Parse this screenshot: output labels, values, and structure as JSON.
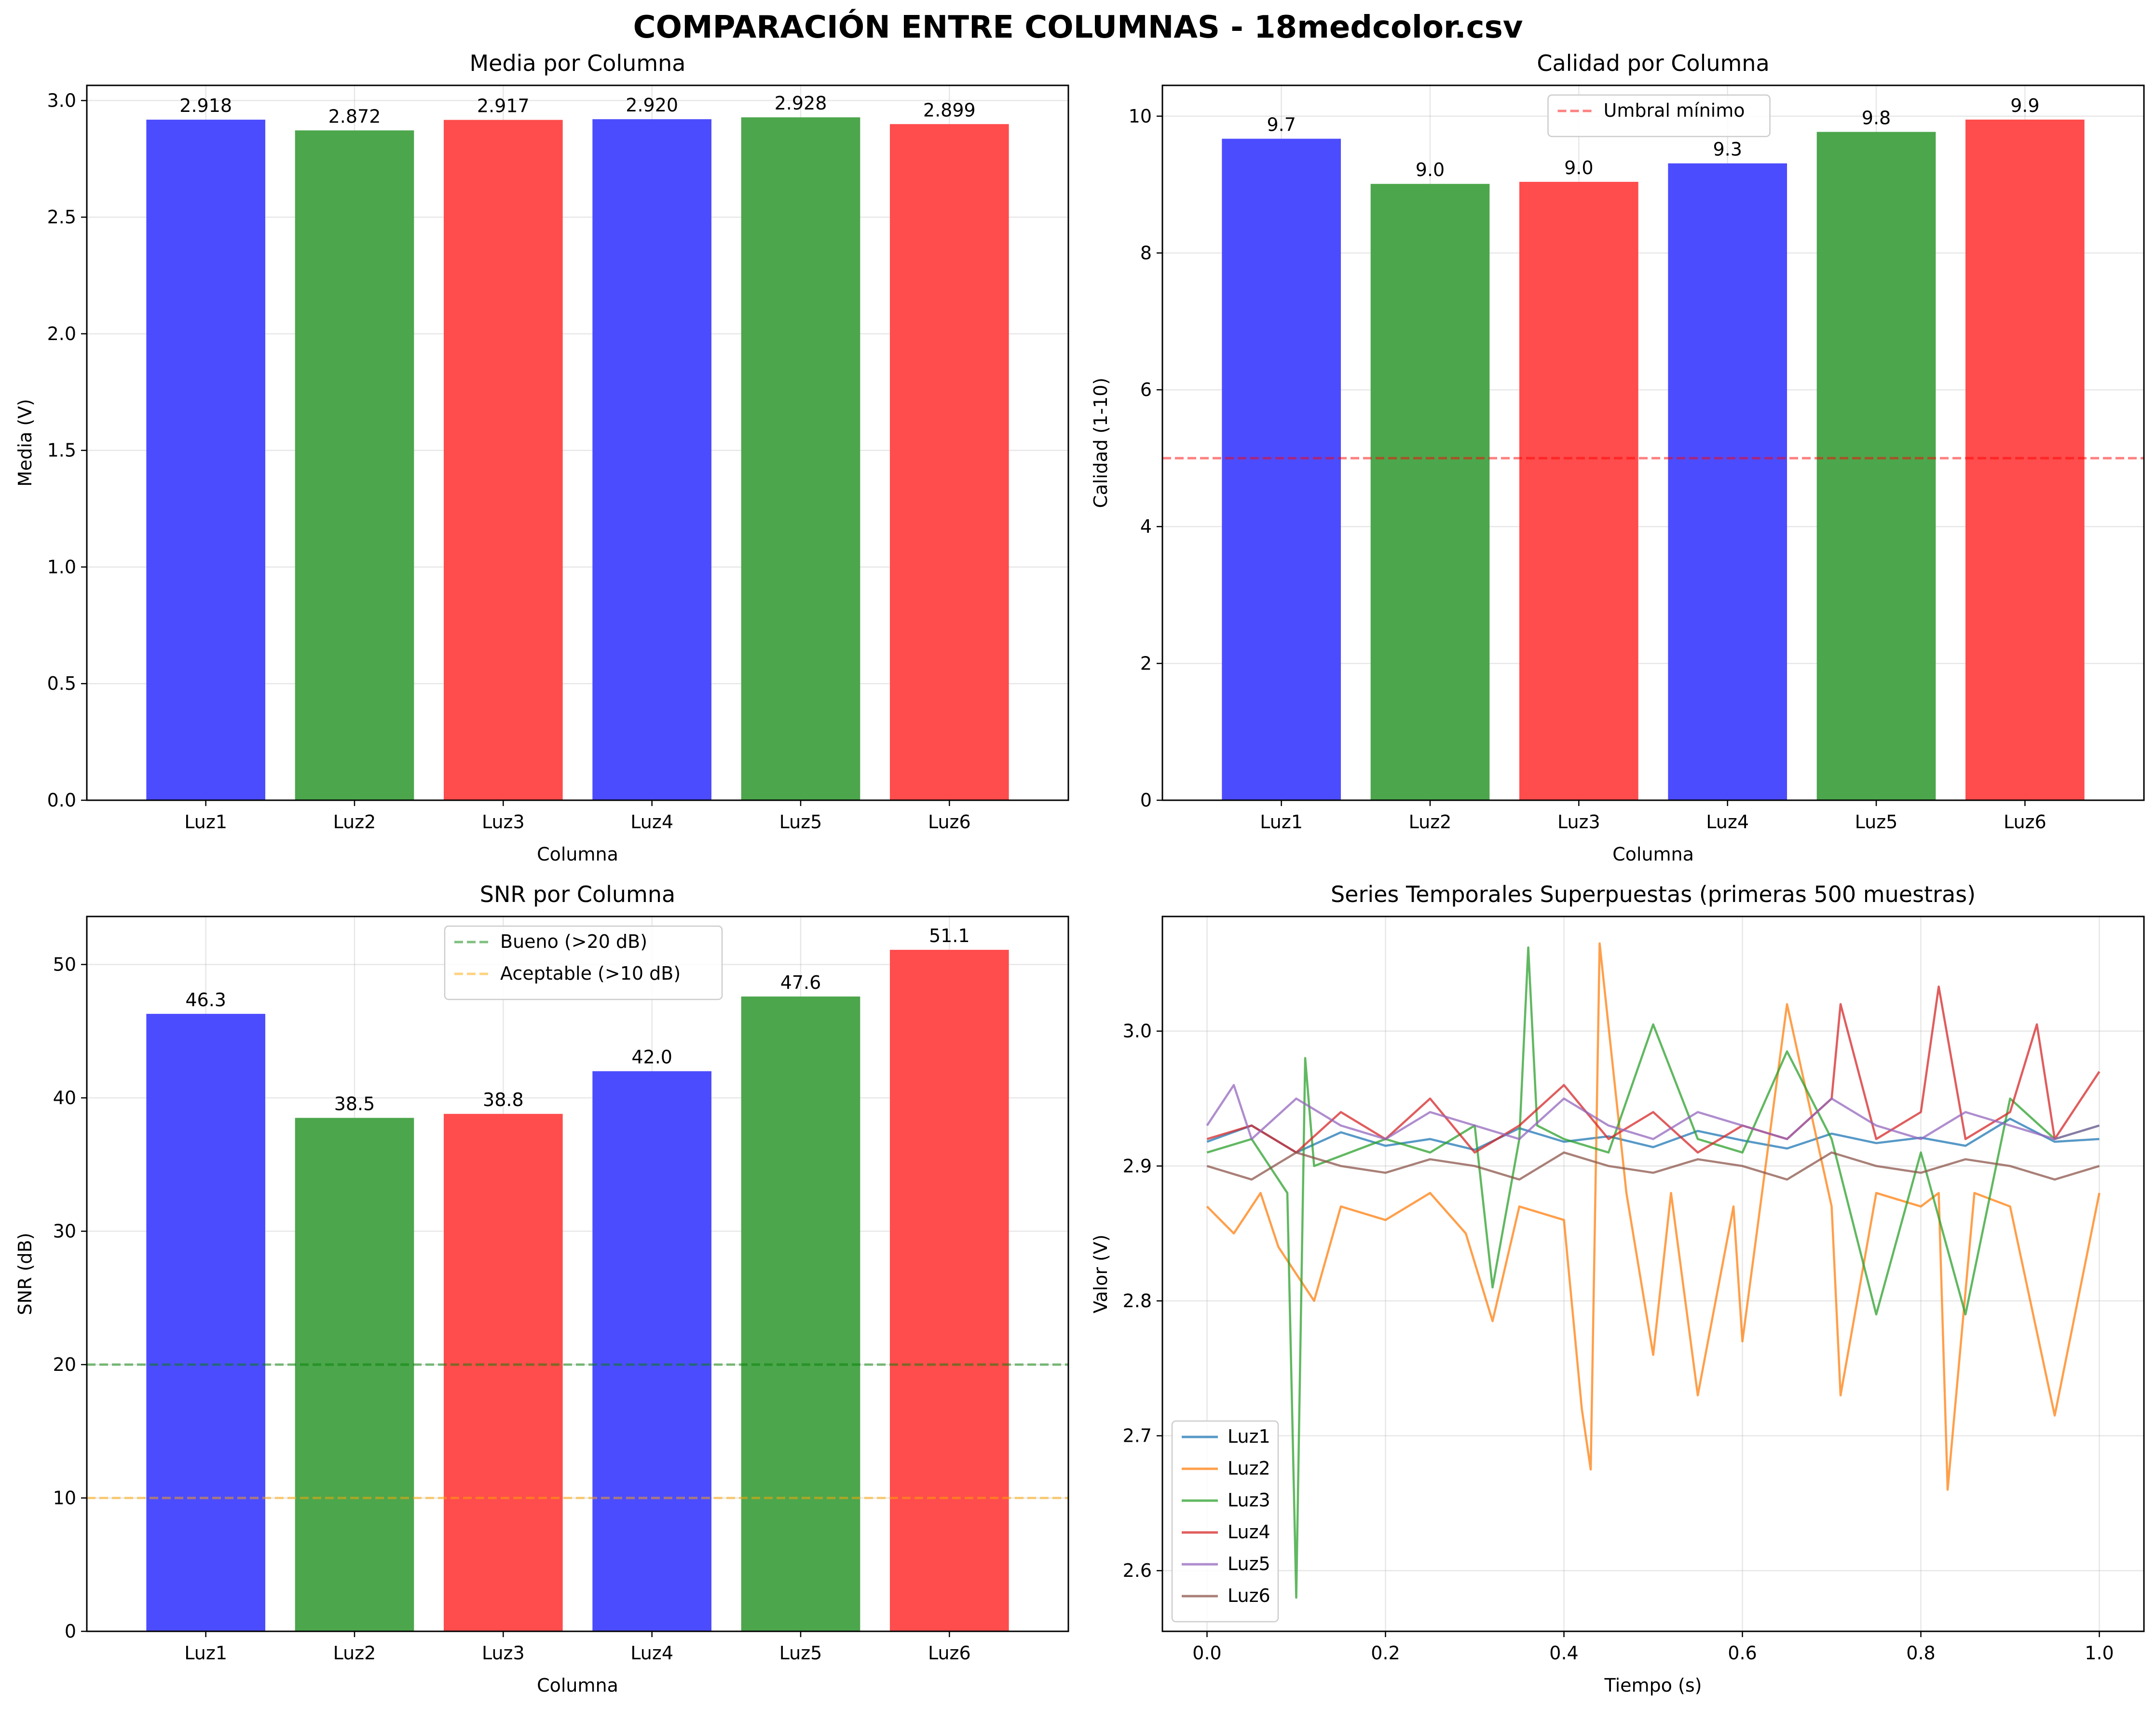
{
  "figure": {
    "suptitle": "COMPARACIÓN ENTRE COLUMNAS - 18medcolor.csv"
  },
  "chart_data": [
    {
      "type": "bar",
      "title": "Media por Columna",
      "xlabel": "Columna",
      "ylabel": "Media (V)",
      "categories": [
        "Luz1",
        "Luz2",
        "Luz3",
        "Luz4",
        "Luz5",
        "Luz6"
      ],
      "values": [
        2.918,
        2.872,
        2.917,
        2.92,
        2.928,
        2.899
      ],
      "data_labels": [
        "2.918",
        "2.872",
        "2.917",
        "2.920",
        "2.928",
        "2.899"
      ],
      "bar_colors": [
        "#4c4cff",
        "#4ca64c",
        "#ff4c4c",
        "#4c4cff",
        "#4ca64c",
        "#ff4c4c"
      ],
      "ylim": [
        0,
        3.065
      ],
      "yticks": [
        0.0,
        0.5,
        1.0,
        1.5,
        2.0,
        2.5,
        3.0
      ],
      "ytick_labels": [
        "0.0",
        "0.5",
        "1.0",
        "1.5",
        "2.0",
        "2.5",
        "3.0"
      ],
      "grid": true
    },
    {
      "type": "bar",
      "title": "Calidad por Columna",
      "xlabel": "Columna",
      "ylabel": "Calidad (1-10)",
      "categories": [
        "Luz1",
        "Luz2",
        "Luz3",
        "Luz4",
        "Luz5",
        "Luz6"
      ],
      "values": [
        9.67,
        9.01,
        9.04,
        9.31,
        9.77,
        9.95
      ],
      "data_labels": [
        "9.7",
        "9.0",
        "9.0",
        "9.3",
        "9.8",
        "9.9"
      ],
      "bar_colors": [
        "#4c4cff",
        "#4ca64c",
        "#ff4c4c",
        "#4c4cff",
        "#4ca64c",
        "#ff4c4c"
      ],
      "ylim": [
        0,
        10.45
      ],
      "yticks": [
        0,
        2,
        4,
        6,
        8,
        10
      ],
      "ytick_labels": [
        "0",
        "2",
        "4",
        "6",
        "8",
        "10"
      ],
      "hlines": [
        {
          "y": 5,
          "color": "#ff0000",
          "label": "Umbral mínimo"
        }
      ],
      "legend": "upper center",
      "grid": true
    },
    {
      "type": "bar",
      "title": "SNR por Columna",
      "xlabel": "Columna",
      "ylabel": "SNR (dB)",
      "categories": [
        "Luz1",
        "Luz2",
        "Luz3",
        "Luz4",
        "Luz5",
        "Luz6"
      ],
      "values": [
        46.3,
        38.5,
        38.8,
        42.0,
        47.6,
        51.1
      ],
      "data_labels": [
        "46.3",
        "38.5",
        "38.8",
        "42.0",
        "47.6",
        "51.1"
      ],
      "bar_colors": [
        "#4c4cff",
        "#4ca64c",
        "#ff4c4c",
        "#4c4cff",
        "#4ca64c",
        "#ff4c4c"
      ],
      "ylim": [
        0,
        53.6
      ],
      "yticks": [
        0,
        10,
        20,
        30,
        40,
        50
      ],
      "ytick_labels": [
        "0",
        "10",
        "20",
        "30",
        "40",
        "50"
      ],
      "hlines": [
        {
          "y": 20,
          "color": "#008000",
          "label": "Bueno (>20 dB)"
        },
        {
          "y": 10,
          "color": "#ffa500",
          "label": "Aceptable (>10 dB)"
        }
      ],
      "legend": "upper center",
      "grid": true
    },
    {
      "type": "line",
      "title": "Series Temporales Superpuestas (primeras 500 muestras)",
      "xlabel": "Tiempo (s)",
      "ylabel": "Valor (V)",
      "xlim": [
        -0.05,
        1.05
      ],
      "ylim": [
        2.555,
        3.085
      ],
      "xticks": [
        0.0,
        0.2,
        0.4,
        0.6,
        0.8,
        1.0
      ],
      "xtick_labels": [
        "0.0",
        "0.2",
        "0.4",
        "0.6",
        "0.8",
        "1.0"
      ],
      "yticks": [
        2.6,
        2.7,
        2.8,
        2.9,
        3.0
      ],
      "ytick_labels": [
        "2.6",
        "2.7",
        "2.8",
        "2.9",
        "3.0"
      ],
      "legend": "lower left",
      "grid": true,
      "series": [
        {
          "name": "Luz1",
          "color": "#1f77b4",
          "x": [
            0.0,
            0.05,
            0.1,
            0.15,
            0.2,
            0.25,
            0.3,
            0.35,
            0.4,
            0.45,
            0.5,
            0.55,
            0.6,
            0.65,
            0.7,
            0.75,
            0.8,
            0.85,
            0.9,
            0.95,
            1.0
          ],
          "y": [
            2.918,
            2.93,
            2.91,
            2.925,
            2.915,
            2.92,
            2.912,
            2.928,
            2.918,
            2.922,
            2.914,
            2.926,
            2.919,
            2.913,
            2.924,
            2.917,
            2.921,
            2.915,
            2.935,
            2.918,
            2.92
          ]
        },
        {
          "name": "Luz2",
          "color": "#ff7f0e",
          "x": [
            0.0,
            0.03,
            0.06,
            0.08,
            0.12,
            0.15,
            0.2,
            0.25,
            0.29,
            0.32,
            0.35,
            0.4,
            0.42,
            0.43,
            0.44,
            0.47,
            0.5,
            0.52,
            0.55,
            0.59,
            0.6,
            0.65,
            0.7,
            0.71,
            0.75,
            0.8,
            0.82,
            0.83,
            0.86,
            0.9,
            0.95,
            1.0
          ],
          "y": [
            2.87,
            2.85,
            2.88,
            2.84,
            2.8,
            2.87,
            2.86,
            2.88,
            2.85,
            2.785,
            2.87,
            2.86,
            2.72,
            2.675,
            3.065,
            2.88,
            2.76,
            2.88,
            2.73,
            2.87,
            2.77,
            3.02,
            2.87,
            2.73,
            2.88,
            2.87,
            2.88,
            2.66,
            2.88,
            2.87,
            2.715,
            2.88
          ]
        },
        {
          "name": "Luz3",
          "color": "#2ca02c",
          "x": [
            0.0,
            0.05,
            0.09,
            0.1,
            0.11,
            0.12,
            0.2,
            0.25,
            0.3,
            0.32,
            0.35,
            0.36,
            0.37,
            0.4,
            0.45,
            0.5,
            0.55,
            0.6,
            0.65,
            0.7,
            0.75,
            0.8,
            0.85,
            0.9,
            0.95,
            1.0
          ],
          "y": [
            2.91,
            2.92,
            2.88,
            2.58,
            2.98,
            2.9,
            2.92,
            2.91,
            2.93,
            2.81,
            2.92,
            3.062,
            2.93,
            2.92,
            2.91,
            3.005,
            2.92,
            2.91,
            2.985,
            2.92,
            2.79,
            2.91,
            2.79,
            2.95,
            2.92,
            2.93
          ]
        },
        {
          "name": "Luz4",
          "color": "#d62728",
          "x": [
            0.0,
            0.05,
            0.1,
            0.15,
            0.2,
            0.25,
            0.3,
            0.35,
            0.4,
            0.45,
            0.5,
            0.55,
            0.6,
            0.65,
            0.7,
            0.71,
            0.75,
            0.8,
            0.82,
            0.85,
            0.9,
            0.93,
            0.95,
            1.0
          ],
          "y": [
            2.92,
            2.93,
            2.91,
            2.94,
            2.92,
            2.95,
            2.91,
            2.93,
            2.96,
            2.92,
            2.94,
            2.91,
            2.93,
            2.92,
            2.95,
            3.02,
            2.92,
            2.94,
            3.033,
            2.92,
            2.94,
            3.005,
            2.92,
            2.97
          ]
        },
        {
          "name": "Luz5",
          "color": "#9467bd",
          "x": [
            0.0,
            0.03,
            0.05,
            0.1,
            0.15,
            0.2,
            0.25,
            0.3,
            0.35,
            0.4,
            0.45,
            0.5,
            0.55,
            0.6,
            0.65,
            0.7,
            0.75,
            0.8,
            0.85,
            0.9,
            0.95,
            1.0
          ],
          "y": [
            2.93,
            2.96,
            2.92,
            2.95,
            2.93,
            2.92,
            2.94,
            2.93,
            2.92,
            2.95,
            2.93,
            2.92,
            2.94,
            2.93,
            2.92,
            2.95,
            2.93,
            2.92,
            2.94,
            2.93,
            2.92,
            2.93
          ]
        },
        {
          "name": "Luz6",
          "color": "#8c564b",
          "x": [
            0.0,
            0.05,
            0.1,
            0.15,
            0.2,
            0.25,
            0.3,
            0.35,
            0.4,
            0.45,
            0.5,
            0.55,
            0.6,
            0.65,
            0.7,
            0.75,
            0.8,
            0.85,
            0.9,
            0.95,
            1.0
          ],
          "y": [
            2.9,
            2.89,
            2.91,
            2.9,
            2.895,
            2.905,
            2.9,
            2.89,
            2.91,
            2.9,
            2.895,
            2.905,
            2.9,
            2.89,
            2.91,
            2.9,
            2.895,
            2.905,
            2.9,
            2.89,
            2.9
          ]
        }
      ]
    }
  ]
}
